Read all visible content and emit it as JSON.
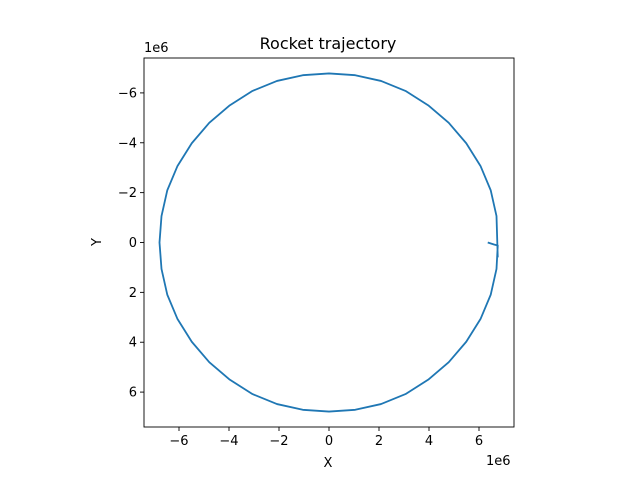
{
  "chart_data": {
    "type": "line",
    "title": "Rocket trajectory",
    "xlabel": "X",
    "ylabel": "Y",
    "x_offset_label": "1e6",
    "y_offset_label": "1e6",
    "xlim": [
      -7.4,
      7.4
    ],
    "ylim": [
      7.4,
      -7.4
    ],
    "y_inverted": true,
    "xticks": [
      -6,
      -4,
      -2,
      0,
      2,
      4,
      6
    ],
    "yticks": [
      -6,
      -4,
      -2,
      0,
      2,
      4,
      6
    ],
    "grid": false,
    "line_color": "#1f77b4",
    "series": [
      {
        "points_x": [
          6.35,
          6.6,
          6.75,
          6.7,
          6.47,
          6.06,
          5.49,
          4.79,
          3.97,
          3.06,
          2.08,
          1.05,
          0.0,
          -1.05,
          -2.08,
          -3.06,
          -3.97,
          -4.79,
          -5.49,
          -6.06,
          -6.47,
          -6.7,
          -6.78,
          -6.7,
          -6.47,
          -6.06,
          -5.49,
          -4.79,
          -3.97,
          -3.06,
          -2.08,
          -1.05,
          0.0,
          1.05,
          2.08,
          3.06,
          3.97,
          4.79,
          5.49,
          6.06,
          6.47,
          6.7,
          6.75
        ],
        "points_y": [
          0.0,
          0.08,
          0.12,
          1.06,
          2.09,
          3.07,
          3.98,
          4.8,
          5.5,
          6.08,
          6.48,
          6.71,
          6.78,
          6.71,
          6.48,
          6.08,
          5.5,
          4.8,
          3.98,
          3.07,
          2.09,
          1.06,
          0.0,
          -1.06,
          -2.09,
          -3.07,
          -3.98,
          -4.8,
          -5.5,
          -6.08,
          -6.48,
          -6.71,
          -6.78,
          -6.71,
          -6.48,
          -6.08,
          -5.5,
          -4.8,
          -3.98,
          -3.07,
          -2.09,
          -1.06,
          0.6
        ]
      }
    ]
  }
}
